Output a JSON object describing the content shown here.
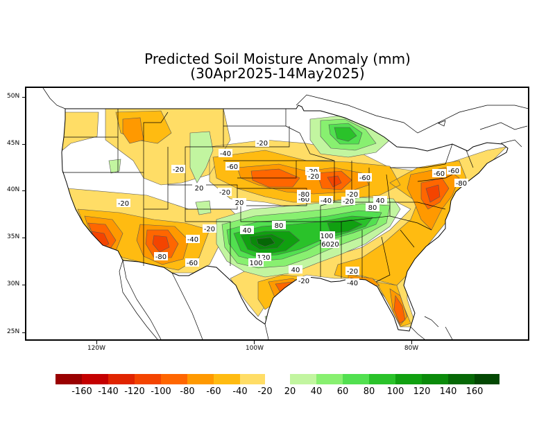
{
  "title": {
    "line1": "Predicted Soil Moisture Anomaly (mm)",
    "line2": "(30Apr2025-14May2025)"
  },
  "axes": {
    "lat_labels": [
      "50N",
      "45N",
      "40N",
      "35N",
      "30N",
      "25N"
    ],
    "lon_labels": [
      "120W",
      "100W",
      "80W"
    ]
  },
  "legend": {
    "dry_colors": [
      "#990000",
      "#c40000",
      "#e02400",
      "#f44400",
      "#ff6600",
      "#ff9900",
      "#ffbb11",
      "#ffdd66"
    ],
    "wet_colors": [
      "#c2f5a0",
      "#88f070",
      "#52e050",
      "#2ac22a",
      "#10a010",
      "#0a8a0a",
      "#066806",
      "#034803"
    ],
    "dry_labels": [
      "-160",
      "-140",
      "-120",
      "-100",
      "-80",
      "-60",
      "-40",
      "-20"
    ],
    "wet_labels": [
      "20",
      "40",
      "60",
      "80",
      "100",
      "120",
      "140",
      "160"
    ]
  },
  "contour_labels": [
    {
      "text": "-20"
    },
    {
      "text": "-20"
    },
    {
      "text": "-40"
    },
    {
      "text": "-60"
    },
    {
      "text": "-20"
    },
    {
      "text": "20"
    },
    {
      "text": "-20"
    },
    {
      "text": "20"
    },
    {
      "text": "-20"
    },
    {
      "text": "-60"
    },
    {
      "text": "-20"
    },
    {
      "text": "-60"
    },
    {
      "text": "-80"
    },
    {
      "text": "-60"
    },
    {
      "text": "-40"
    },
    {
      "text": "-20"
    },
    {
      "text": "80"
    },
    {
      "text": "40"
    },
    {
      "text": "-20"
    },
    {
      "text": "40"
    },
    {
      "text": "80"
    },
    {
      "text": "100"
    },
    {
      "text": "6020"
    },
    {
      "text": "-40"
    },
    {
      "text": "120"
    },
    {
      "text": "100"
    },
    {
      "text": "-80"
    },
    {
      "text": "-60"
    },
    {
      "text": "40"
    },
    {
      "text": "-20"
    },
    {
      "text": "-20"
    },
    {
      "text": "-40"
    },
    {
      "text": "-60"
    },
    {
      "text": "-80"
    },
    {
      "text": "-20"
    }
  ]
}
